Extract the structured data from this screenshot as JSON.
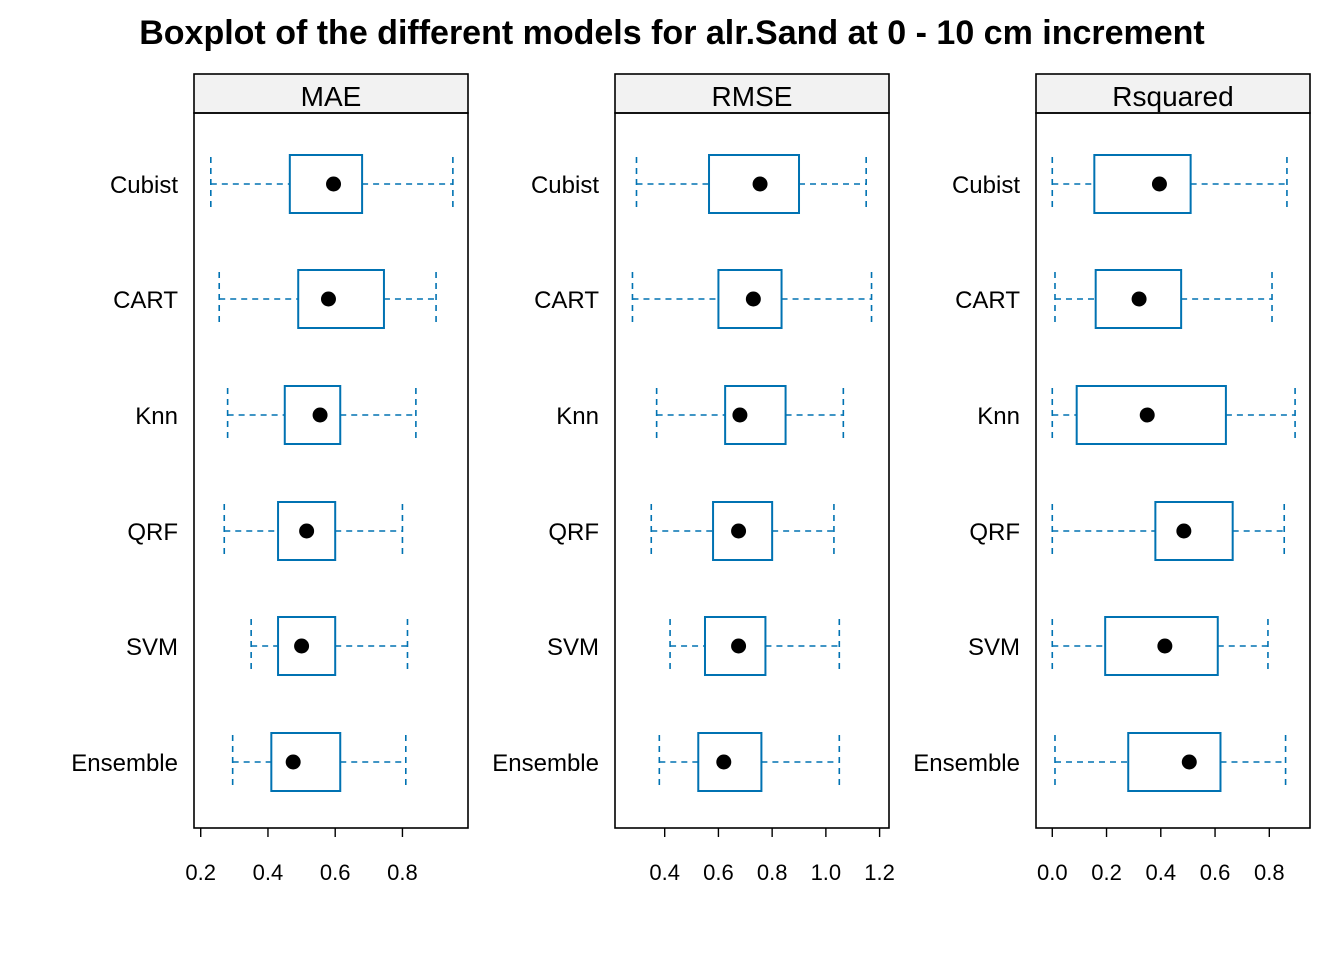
{
  "chart_data": {
    "type": "boxplot",
    "title": "Boxplot of the different models for alr.Sand at 0 - 10 cm increment",
    "categories": [
      "Cubist",
      "CART",
      "Knn",
      "QRF",
      "SVM",
      "Ensemble"
    ],
    "colors": {
      "box": "#0072B2",
      "median": "#000000",
      "strip": "#F2F2F2",
      "frame": "#000000"
    },
    "panels": [
      {
        "name": "MAE",
        "xlim": [
          0.18,
          0.995
        ],
        "ticks": [
          0.2,
          0.4,
          0.6,
          0.8
        ],
        "tick_labels": [
          "0.2",
          "0.4",
          "0.6",
          "0.8"
        ],
        "series": [
          {
            "model": "Cubist",
            "min": 0.23,
            "q1": 0.465,
            "median": 0.595,
            "q3": 0.68,
            "max": 0.95
          },
          {
            "model": "CART",
            "min": 0.255,
            "q1": 0.49,
            "median": 0.58,
            "q3": 0.745,
            "max": 0.9
          },
          {
            "model": "Knn",
            "min": 0.28,
            "q1": 0.45,
            "median": 0.555,
            "q3": 0.615,
            "max": 0.84
          },
          {
            "model": "QRF",
            "min": 0.27,
            "q1": 0.43,
            "median": 0.515,
            "q3": 0.6,
            "max": 0.8
          },
          {
            "model": "SVM",
            "min": 0.35,
            "q1": 0.43,
            "median": 0.5,
            "q3": 0.6,
            "max": 0.815
          },
          {
            "model": "Ensemble",
            "min": 0.295,
            "q1": 0.41,
            "median": 0.475,
            "q3": 0.615,
            "max": 0.81
          }
        ]
      },
      {
        "name": "RMSE",
        "xlim": [
          0.215,
          1.235
        ],
        "ticks": [
          0.4,
          0.6,
          0.8,
          1.0,
          1.2
        ],
        "tick_labels": [
          "0.4",
          "0.6",
          "0.8",
          "1.0",
          "1.2"
        ],
        "series": [
          {
            "model": "Cubist",
            "min": 0.295,
            "q1": 0.565,
            "median": 0.755,
            "q3": 0.9,
            "max": 1.15
          },
          {
            "model": "CART",
            "min": 0.28,
            "q1": 0.6,
            "median": 0.73,
            "q3": 0.835,
            "max": 1.17
          },
          {
            "model": "Knn",
            "min": 0.37,
            "q1": 0.625,
            "median": 0.68,
            "q3": 0.85,
            "max": 1.065
          },
          {
            "model": "QRF",
            "min": 0.35,
            "q1": 0.58,
            "median": 0.675,
            "q3": 0.8,
            "max": 1.03
          },
          {
            "model": "SVM",
            "min": 0.42,
            "q1": 0.55,
            "median": 0.675,
            "q3": 0.775,
            "max": 1.05
          },
          {
            "model": "Ensemble",
            "min": 0.38,
            "q1": 0.525,
            "median": 0.62,
            "q3": 0.76,
            "max": 1.05
          }
        ]
      },
      {
        "name": "Rsquared",
        "xlim": [
          -0.06,
          0.95
        ],
        "ticks": [
          0.0,
          0.2,
          0.4,
          0.6,
          0.8
        ],
        "tick_labels": [
          "0.0",
          "0.2",
          "0.4",
          "0.6",
          "0.8"
        ],
        "series": [
          {
            "model": "Cubist",
            "min": 0.0,
            "q1": 0.155,
            "median": 0.395,
            "q3": 0.51,
            "max": 0.865
          },
          {
            "model": "CART",
            "min": 0.01,
            "q1": 0.16,
            "median": 0.32,
            "q3": 0.475,
            "max": 0.81
          },
          {
            "model": "Knn",
            "min": 0.0,
            "q1": 0.09,
            "median": 0.35,
            "q3": 0.64,
            "max": 0.895
          },
          {
            "model": "QRF",
            "min": 0.0,
            "q1": 0.38,
            "median": 0.485,
            "q3": 0.665,
            "max": 0.855
          },
          {
            "model": "SVM",
            "min": 0.0,
            "q1": 0.195,
            "median": 0.415,
            "q3": 0.61,
            "max": 0.795
          },
          {
            "model": "Ensemble",
            "min": 0.01,
            "q1": 0.28,
            "median": 0.505,
            "q3": 0.62,
            "max": 0.86
          }
        ]
      }
    ]
  }
}
